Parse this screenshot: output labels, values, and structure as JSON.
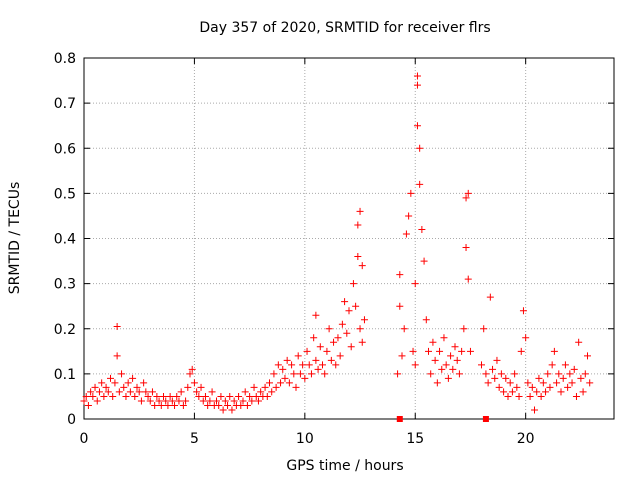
{
  "chart_data": {
    "type": "scatter",
    "title": "Day 357 of 2020, SRMTID for receiver flrs",
    "xlabel": "GPS time / hours",
    "ylabel": "SRMTID / TECUs",
    "xlim": [
      0,
      24
    ],
    "ylim": [
      0,
      0.8
    ],
    "grid": true,
    "xticks": [
      0,
      5,
      10,
      15,
      20
    ],
    "xtick_labels": [
      "0",
      "5",
      "10",
      "15",
      "20"
    ],
    "yticks": [
      0,
      0.1,
      0.2,
      0.3,
      0.4,
      0.5,
      0.6,
      0.7,
      0.8
    ],
    "ytick_labels": [
      "0",
      "0.1",
      "0.2",
      "0.3",
      "0.4",
      "0.5",
      "0.6",
      "0.7",
      "0.8"
    ],
    "marker": "+",
    "marker_color": "#ff0000",
    "series": [
      {
        "name": "SRMTID",
        "points": [
          [
            0.0,
            0.04
          ],
          [
            0.1,
            0.05
          ],
          [
            0.2,
            0.03
          ],
          [
            0.3,
            0.06
          ],
          [
            0.4,
            0.05
          ],
          [
            0.5,
            0.07
          ],
          [
            0.6,
            0.04
          ],
          [
            0.7,
            0.06
          ],
          [
            0.8,
            0.08
          ],
          [
            0.9,
            0.05
          ],
          [
            1.0,
            0.07
          ],
          [
            1.1,
            0.06
          ],
          [
            1.2,
            0.09
          ],
          [
            1.3,
            0.05
          ],
          [
            1.4,
            0.08
          ],
          [
            1.5,
            0.205
          ],
          [
            1.5,
            0.14
          ],
          [
            1.6,
            0.06
          ],
          [
            1.7,
            0.1
          ],
          [
            1.8,
            0.07
          ],
          [
            1.9,
            0.05
          ],
          [
            2.0,
            0.08
          ],
          [
            2.1,
            0.06
          ],
          [
            2.2,
            0.09
          ],
          [
            2.3,
            0.05
          ],
          [
            2.4,
            0.07
          ],
          [
            2.5,
            0.06
          ],
          [
            2.6,
            0.04
          ],
          [
            2.7,
            0.08
          ],
          [
            2.8,
            0.06
          ],
          [
            2.9,
            0.05
          ],
          [
            3.0,
            0.04
          ],
          [
            3.1,
            0.06
          ],
          [
            3.2,
            0.03
          ],
          [
            3.3,
            0.05
          ],
          [
            3.4,
            0.04
          ],
          [
            3.5,
            0.03
          ],
          [
            3.6,
            0.05
          ],
          [
            3.7,
            0.04
          ],
          [
            3.8,
            0.03
          ],
          [
            3.9,
            0.05
          ],
          [
            4.0,
            0.04
          ],
          [
            4.1,
            0.03
          ],
          [
            4.2,
            0.05
          ],
          [
            4.3,
            0.04
          ],
          [
            4.4,
            0.06
          ],
          [
            4.5,
            0.03
          ],
          [
            4.6,
            0.04
          ],
          [
            4.7,
            0.07
          ],
          [
            4.8,
            0.1
          ],
          [
            4.9,
            0.11
          ],
          [
            5.0,
            0.08
          ],
          [
            5.1,
            0.06
          ],
          [
            5.2,
            0.05
          ],
          [
            5.3,
            0.07
          ],
          [
            5.4,
            0.04
          ],
          [
            5.5,
            0.05
          ],
          [
            5.6,
            0.03
          ],
          [
            5.7,
            0.04
          ],
          [
            5.8,
            0.06
          ],
          [
            5.9,
            0.03
          ],
          [
            6.0,
            0.04
          ],
          [
            6.1,
            0.03
          ],
          [
            6.2,
            0.05
          ],
          [
            6.3,
            0.02
          ],
          [
            6.4,
            0.04
          ],
          [
            6.5,
            0.03
          ],
          [
            6.6,
            0.05
          ],
          [
            6.7,
            0.02
          ],
          [
            6.8,
            0.04
          ],
          [
            6.9,
            0.03
          ],
          [
            7.0,
            0.05
          ],
          [
            7.1,
            0.03
          ],
          [
            7.2,
            0.04
          ],
          [
            7.3,
            0.06
          ],
          [
            7.4,
            0.03
          ],
          [
            7.5,
            0.05
          ],
          [
            7.6,
            0.04
          ],
          [
            7.7,
            0.07
          ],
          [
            7.8,
            0.05
          ],
          [
            7.9,
            0.04
          ],
          [
            8.0,
            0.06
          ],
          [
            8.1,
            0.05
          ],
          [
            8.2,
            0.07
          ],
          [
            8.3,
            0.05
          ],
          [
            8.4,
            0.08
          ],
          [
            8.5,
            0.06
          ],
          [
            8.6,
            0.1
          ],
          [
            8.7,
            0.07
          ],
          [
            8.8,
            0.12
          ],
          [
            8.9,
            0.08
          ],
          [
            9.0,
            0.11
          ],
          [
            9.1,
            0.09
          ],
          [
            9.2,
            0.13
          ],
          [
            9.3,
            0.08
          ],
          [
            9.4,
            0.12
          ],
          [
            9.5,
            0.1
          ],
          [
            9.6,
            0.07
          ],
          [
            9.7,
            0.14
          ],
          [
            9.8,
            0.1
          ],
          [
            9.9,
            0.12
          ],
          [
            10.0,
            0.09
          ],
          [
            10.1,
            0.15
          ],
          [
            10.2,
            0.12
          ],
          [
            10.3,
            0.1
          ],
          [
            10.4,
            0.18
          ],
          [
            10.5,
            0.23
          ],
          [
            10.5,
            0.13
          ],
          [
            10.6,
            0.11
          ],
          [
            10.7,
            0.16
          ],
          [
            10.8,
            0.12
          ],
          [
            10.9,
            0.1
          ],
          [
            11.0,
            0.15
          ],
          [
            11.1,
            0.2
          ],
          [
            11.2,
            0.13
          ],
          [
            11.3,
            0.17
          ],
          [
            11.4,
            0.12
          ],
          [
            11.5,
            0.18
          ],
          [
            11.6,
            0.14
          ],
          [
            11.7,
            0.21
          ],
          [
            11.8,
            0.26
          ],
          [
            11.9,
            0.19
          ],
          [
            12.0,
            0.24
          ],
          [
            12.1,
            0.16
          ],
          [
            12.2,
            0.3
          ],
          [
            12.3,
            0.25
          ],
          [
            12.4,
            0.43
          ],
          [
            12.4,
            0.36
          ],
          [
            12.5,
            0.2
          ],
          [
            12.5,
            0.46
          ],
          [
            12.6,
            0.17
          ],
          [
            12.6,
            0.34
          ],
          [
            12.7,
            0.22
          ],
          [
            14.2,
            0.1
          ],
          [
            14.3,
            0.25
          ],
          [
            14.3,
            0.32
          ],
          [
            14.4,
            0.14
          ],
          [
            14.5,
            0.2
          ],
          [
            14.6,
            0.41
          ],
          [
            14.7,
            0.45
          ],
          [
            14.8,
            0.5
          ],
          [
            14.9,
            0.15
          ],
          [
            15.0,
            0.3
          ],
          [
            15.0,
            0.12
          ],
          [
            15.1,
            0.74
          ],
          [
            15.1,
            0.76
          ],
          [
            15.1,
            0.65
          ],
          [
            15.2,
            0.6
          ],
          [
            15.2,
            0.52
          ],
          [
            15.3,
            0.42
          ],
          [
            15.4,
            0.35
          ],
          [
            15.5,
            0.22
          ],
          [
            15.6,
            0.15
          ],
          [
            15.7,
            0.1
          ],
          [
            15.8,
            0.17
          ],
          [
            15.9,
            0.13
          ],
          [
            16.0,
            0.08
          ],
          [
            16.1,
            0.15
          ],
          [
            16.2,
            0.11
          ],
          [
            16.3,
            0.18
          ],
          [
            16.4,
            0.12
          ],
          [
            16.5,
            0.09
          ],
          [
            16.6,
            0.14
          ],
          [
            16.7,
            0.11
          ],
          [
            16.8,
            0.16
          ],
          [
            16.9,
            0.13
          ],
          [
            17.0,
            0.1
          ],
          [
            17.1,
            0.15
          ],
          [
            17.2,
            0.2
          ],
          [
            17.3,
            0.38
          ],
          [
            17.3,
            0.49
          ],
          [
            17.4,
            0.5
          ],
          [
            17.4,
            0.31
          ],
          [
            17.5,
            0.15
          ],
          [
            18.0,
            0.12
          ],
          [
            18.1,
            0.2
          ],
          [
            18.2,
            0.1
          ],
          [
            18.3,
            0.08
          ],
          [
            18.4,
            0.27
          ],
          [
            18.5,
            0.11
          ],
          [
            18.6,
            0.09
          ],
          [
            18.7,
            0.13
          ],
          [
            18.8,
            0.07
          ],
          [
            18.9,
            0.1
          ],
          [
            19.0,
            0.06
          ],
          [
            19.1,
            0.09
          ],
          [
            19.2,
            0.05
          ],
          [
            19.3,
            0.08
          ],
          [
            19.4,
            0.06
          ],
          [
            19.5,
            0.1
          ],
          [
            19.6,
            0.07
          ],
          [
            19.7,
            0.05
          ],
          [
            19.8,
            0.15
          ],
          [
            19.9,
            0.24
          ],
          [
            20.0,
            0.18
          ],
          [
            20.1,
            0.08
          ],
          [
            20.2,
            0.05
          ],
          [
            20.3,
            0.07
          ],
          [
            20.4,
            0.02
          ],
          [
            20.5,
            0.06
          ],
          [
            20.6,
            0.09
          ],
          [
            20.7,
            0.05
          ],
          [
            20.8,
            0.08
          ],
          [
            20.9,
            0.06
          ],
          [
            21.0,
            0.1
          ],
          [
            21.1,
            0.07
          ],
          [
            21.2,
            0.12
          ],
          [
            21.3,
            0.15
          ],
          [
            21.4,
            0.08
          ],
          [
            21.5,
            0.1
          ],
          [
            21.6,
            0.06
          ],
          [
            21.7,
            0.09
          ],
          [
            21.8,
            0.12
          ],
          [
            21.9,
            0.07
          ],
          [
            22.0,
            0.1
          ],
          [
            22.1,
            0.08
          ],
          [
            22.2,
            0.11
          ],
          [
            22.3,
            0.05
          ],
          [
            22.4,
            0.17
          ],
          [
            22.5,
            0.09
          ],
          [
            22.6,
            0.06
          ],
          [
            22.7,
            0.1
          ],
          [
            22.8,
            0.14
          ],
          [
            22.9,
            0.08
          ]
        ]
      }
    ],
    "markers_on_axis": [
      14.3,
      18.2
    ]
  }
}
